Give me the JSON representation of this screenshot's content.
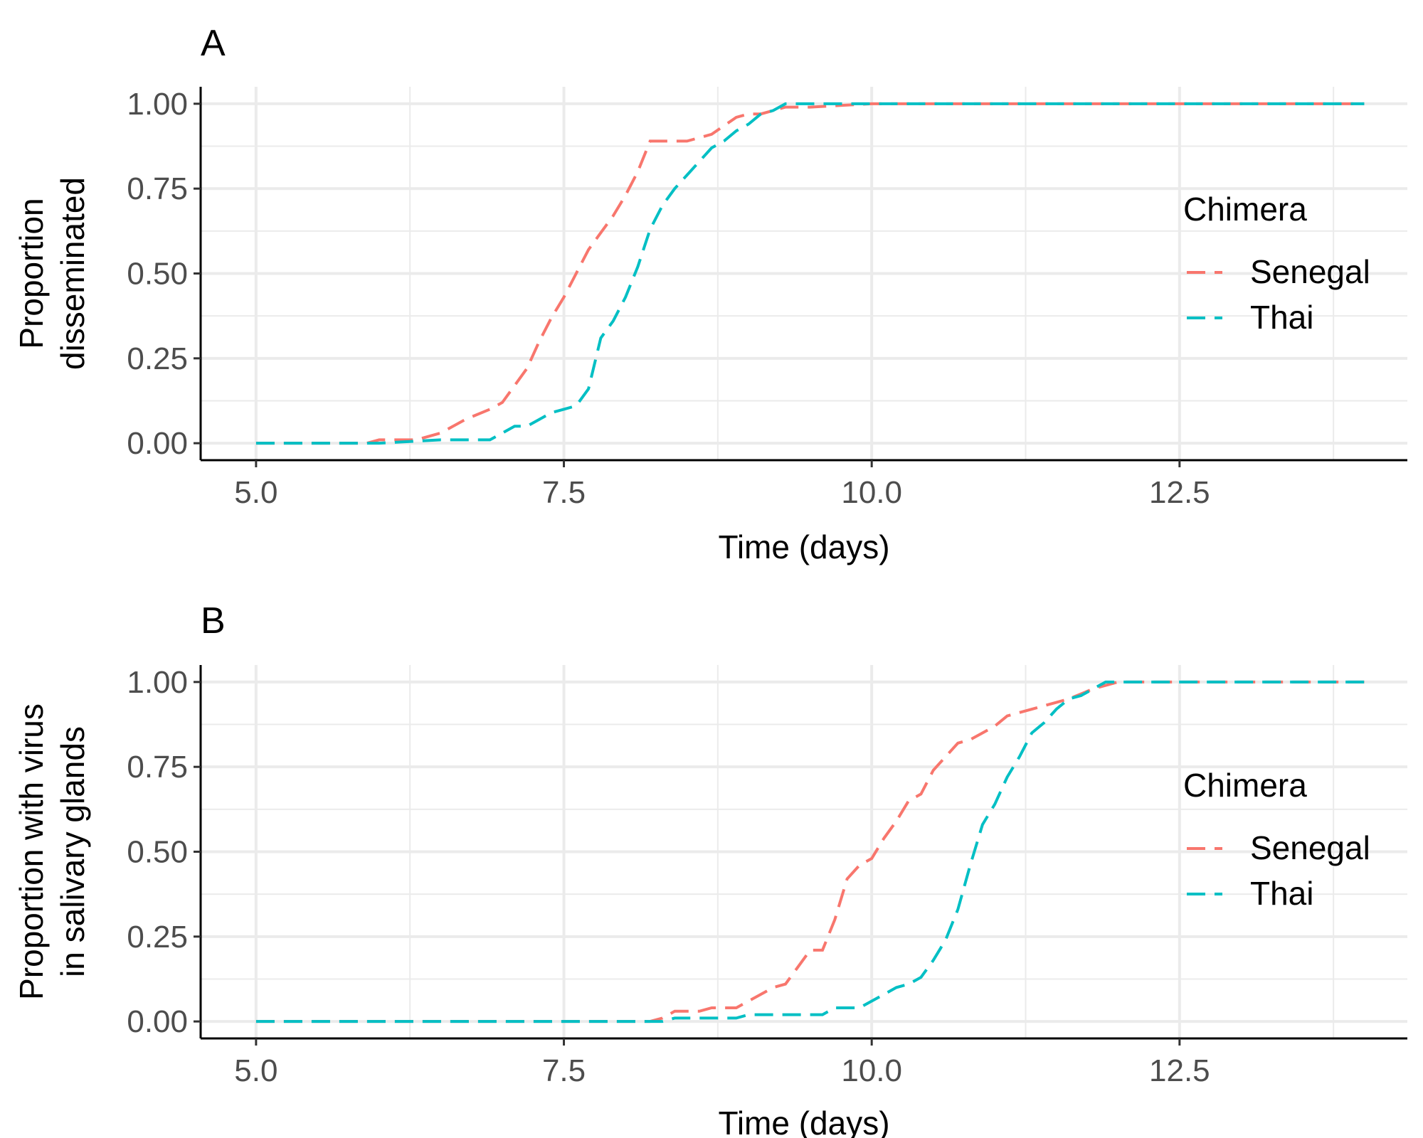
{
  "chart_data": [
    {
      "type": "line",
      "panel_label": "A",
      "title": "",
      "xlabel": "Time (days)",
      "ylabel": [
        "Proportion",
        "disseminated"
      ],
      "xlim": [
        4.55,
        14.35
      ],
      "ylim": [
        -0.05,
        1.05
      ],
      "x_ticks": [
        "5.0",
        "7.5",
        "10.0",
        "12.5"
      ],
      "y_ticks": [
        "0.00",
        "0.25",
        "0.50",
        "0.75",
        "1.00"
      ],
      "grid": true,
      "legend": {
        "title": "Chimera",
        "placement": "right"
      },
      "series": [
        {
          "name": "Senegal",
          "color": "#f8766d",
          "x": [
            5.0,
            5.9,
            6.0,
            6.3,
            6.5,
            6.7,
            6.9,
            7.0,
            7.1,
            7.2,
            7.3,
            7.4,
            7.5,
            7.6,
            7.7,
            7.8,
            7.9,
            8.0,
            8.1,
            8.2,
            8.3,
            8.5,
            8.7,
            8.9,
            9.0,
            9.1,
            9.3,
            9.5,
            10.0,
            12.5,
            14.0
          ],
          "y": [
            0.0,
            0.0,
            0.01,
            0.01,
            0.03,
            0.07,
            0.1,
            0.12,
            0.17,
            0.22,
            0.3,
            0.37,
            0.43,
            0.5,
            0.57,
            0.62,
            0.67,
            0.73,
            0.8,
            0.89,
            0.89,
            0.89,
            0.91,
            0.96,
            0.97,
            0.97,
            0.99,
            0.99,
            1.0,
            1.0,
            1.0
          ]
        },
        {
          "name": "Thai",
          "color": "#00bfc4",
          "x": [
            5.0,
            6.0,
            6.5,
            6.9,
            7.0,
            7.1,
            7.2,
            7.3,
            7.4,
            7.5,
            7.6,
            7.7,
            7.8,
            7.9,
            8.0,
            8.1,
            8.2,
            8.3,
            8.4,
            8.5,
            8.6,
            8.7,
            8.8,
            8.9,
            9.0,
            9.1,
            9.2,
            9.3,
            9.5,
            10.0,
            12.5,
            14.0
          ],
          "y": [
            0.0,
            0.0,
            0.01,
            0.01,
            0.03,
            0.05,
            0.05,
            0.07,
            0.09,
            0.1,
            0.11,
            0.16,
            0.31,
            0.36,
            0.43,
            0.52,
            0.63,
            0.7,
            0.75,
            0.79,
            0.83,
            0.87,
            0.89,
            0.92,
            0.94,
            0.97,
            0.98,
            1.0,
            1.0,
            1.0,
            1.0,
            1.0
          ]
        }
      ]
    },
    {
      "type": "line",
      "panel_label": "B",
      "title": "",
      "xlabel": "Time (days)",
      "ylabel": [
        "Proportion with virus",
        "in salivary glands"
      ],
      "xlim": [
        4.55,
        14.35
      ],
      "ylim": [
        -0.05,
        1.05
      ],
      "x_ticks": [
        "5.0",
        "7.5",
        "10.0",
        "12.5"
      ],
      "y_ticks": [
        "0.00",
        "0.25",
        "0.50",
        "0.75",
        "1.00"
      ],
      "grid": true,
      "legend": {
        "title": "Chimera",
        "placement": "right"
      },
      "series": [
        {
          "name": "Senegal",
          "color": "#f8766d",
          "x": [
            5.0,
            8.2,
            8.3,
            8.4,
            8.6,
            8.7,
            8.9,
            9.0,
            9.1,
            9.2,
            9.3,
            9.4,
            9.5,
            9.6,
            9.7,
            9.8,
            9.9,
            10.0,
            10.1,
            10.2,
            10.3,
            10.4,
            10.5,
            10.6,
            10.7,
            10.8,
            10.9,
            11.0,
            11.1,
            11.2,
            11.4,
            11.6,
            11.8,
            12.0,
            12.5,
            14.0
          ],
          "y": [
            0.0,
            0.0,
            0.01,
            0.03,
            0.03,
            0.04,
            0.04,
            0.06,
            0.08,
            0.1,
            0.11,
            0.16,
            0.21,
            0.21,
            0.3,
            0.42,
            0.46,
            0.48,
            0.54,
            0.59,
            0.65,
            0.67,
            0.74,
            0.78,
            0.82,
            0.83,
            0.85,
            0.87,
            0.9,
            0.91,
            0.93,
            0.95,
            0.98,
            1.0,
            1.0,
            1.0
          ]
        },
        {
          "name": "Thai",
          "color": "#00bfc4",
          "x": [
            5.0,
            8.3,
            8.4,
            8.9,
            9.0,
            9.6,
            9.7,
            9.9,
            10.0,
            10.1,
            10.2,
            10.3,
            10.4,
            10.5,
            10.6,
            10.7,
            10.8,
            10.9,
            11.0,
            11.1,
            11.2,
            11.3,
            11.4,
            11.5,
            11.6,
            11.7,
            11.8,
            11.9,
            12.0,
            12.5,
            14.0
          ],
          "y": [
            0.0,
            0.0,
            0.01,
            0.01,
            0.02,
            0.02,
            0.04,
            0.04,
            0.06,
            0.08,
            0.1,
            0.11,
            0.13,
            0.18,
            0.24,
            0.33,
            0.46,
            0.58,
            0.64,
            0.72,
            0.78,
            0.85,
            0.88,
            0.92,
            0.95,
            0.96,
            0.98,
            1.0,
            1.0,
            1.0,
            1.0
          ]
        }
      ]
    }
  ]
}
